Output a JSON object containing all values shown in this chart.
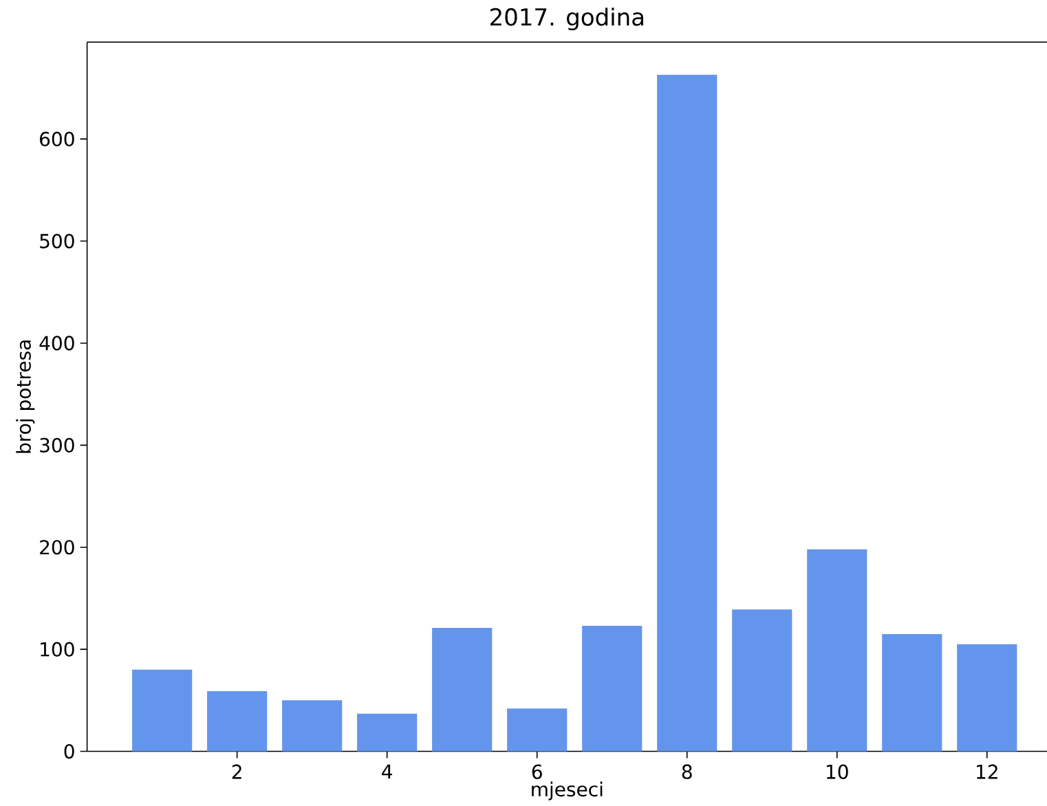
{
  "chart_data": {
    "type": "bar",
    "title": "2017. godina",
    "xlabel": "mjeseci",
    "ylabel": "broj potresa",
    "x": [
      1,
      2,
      3,
      4,
      5,
      6,
      7,
      8,
      9,
      10,
      11,
      12
    ],
    "values": [
      80,
      59,
      50,
      37,
      121,
      42,
      123,
      663,
      139,
      198,
      115,
      105
    ],
    "color": "#6495ed",
    "xlim": [
      0,
      12.8
    ],
    "ylim": [
      0,
      695
    ],
    "xticks": [
      2,
      4,
      6,
      8,
      10,
      12
    ],
    "yticks": [
      0,
      100,
      200,
      300,
      400,
      500,
      600
    ]
  }
}
